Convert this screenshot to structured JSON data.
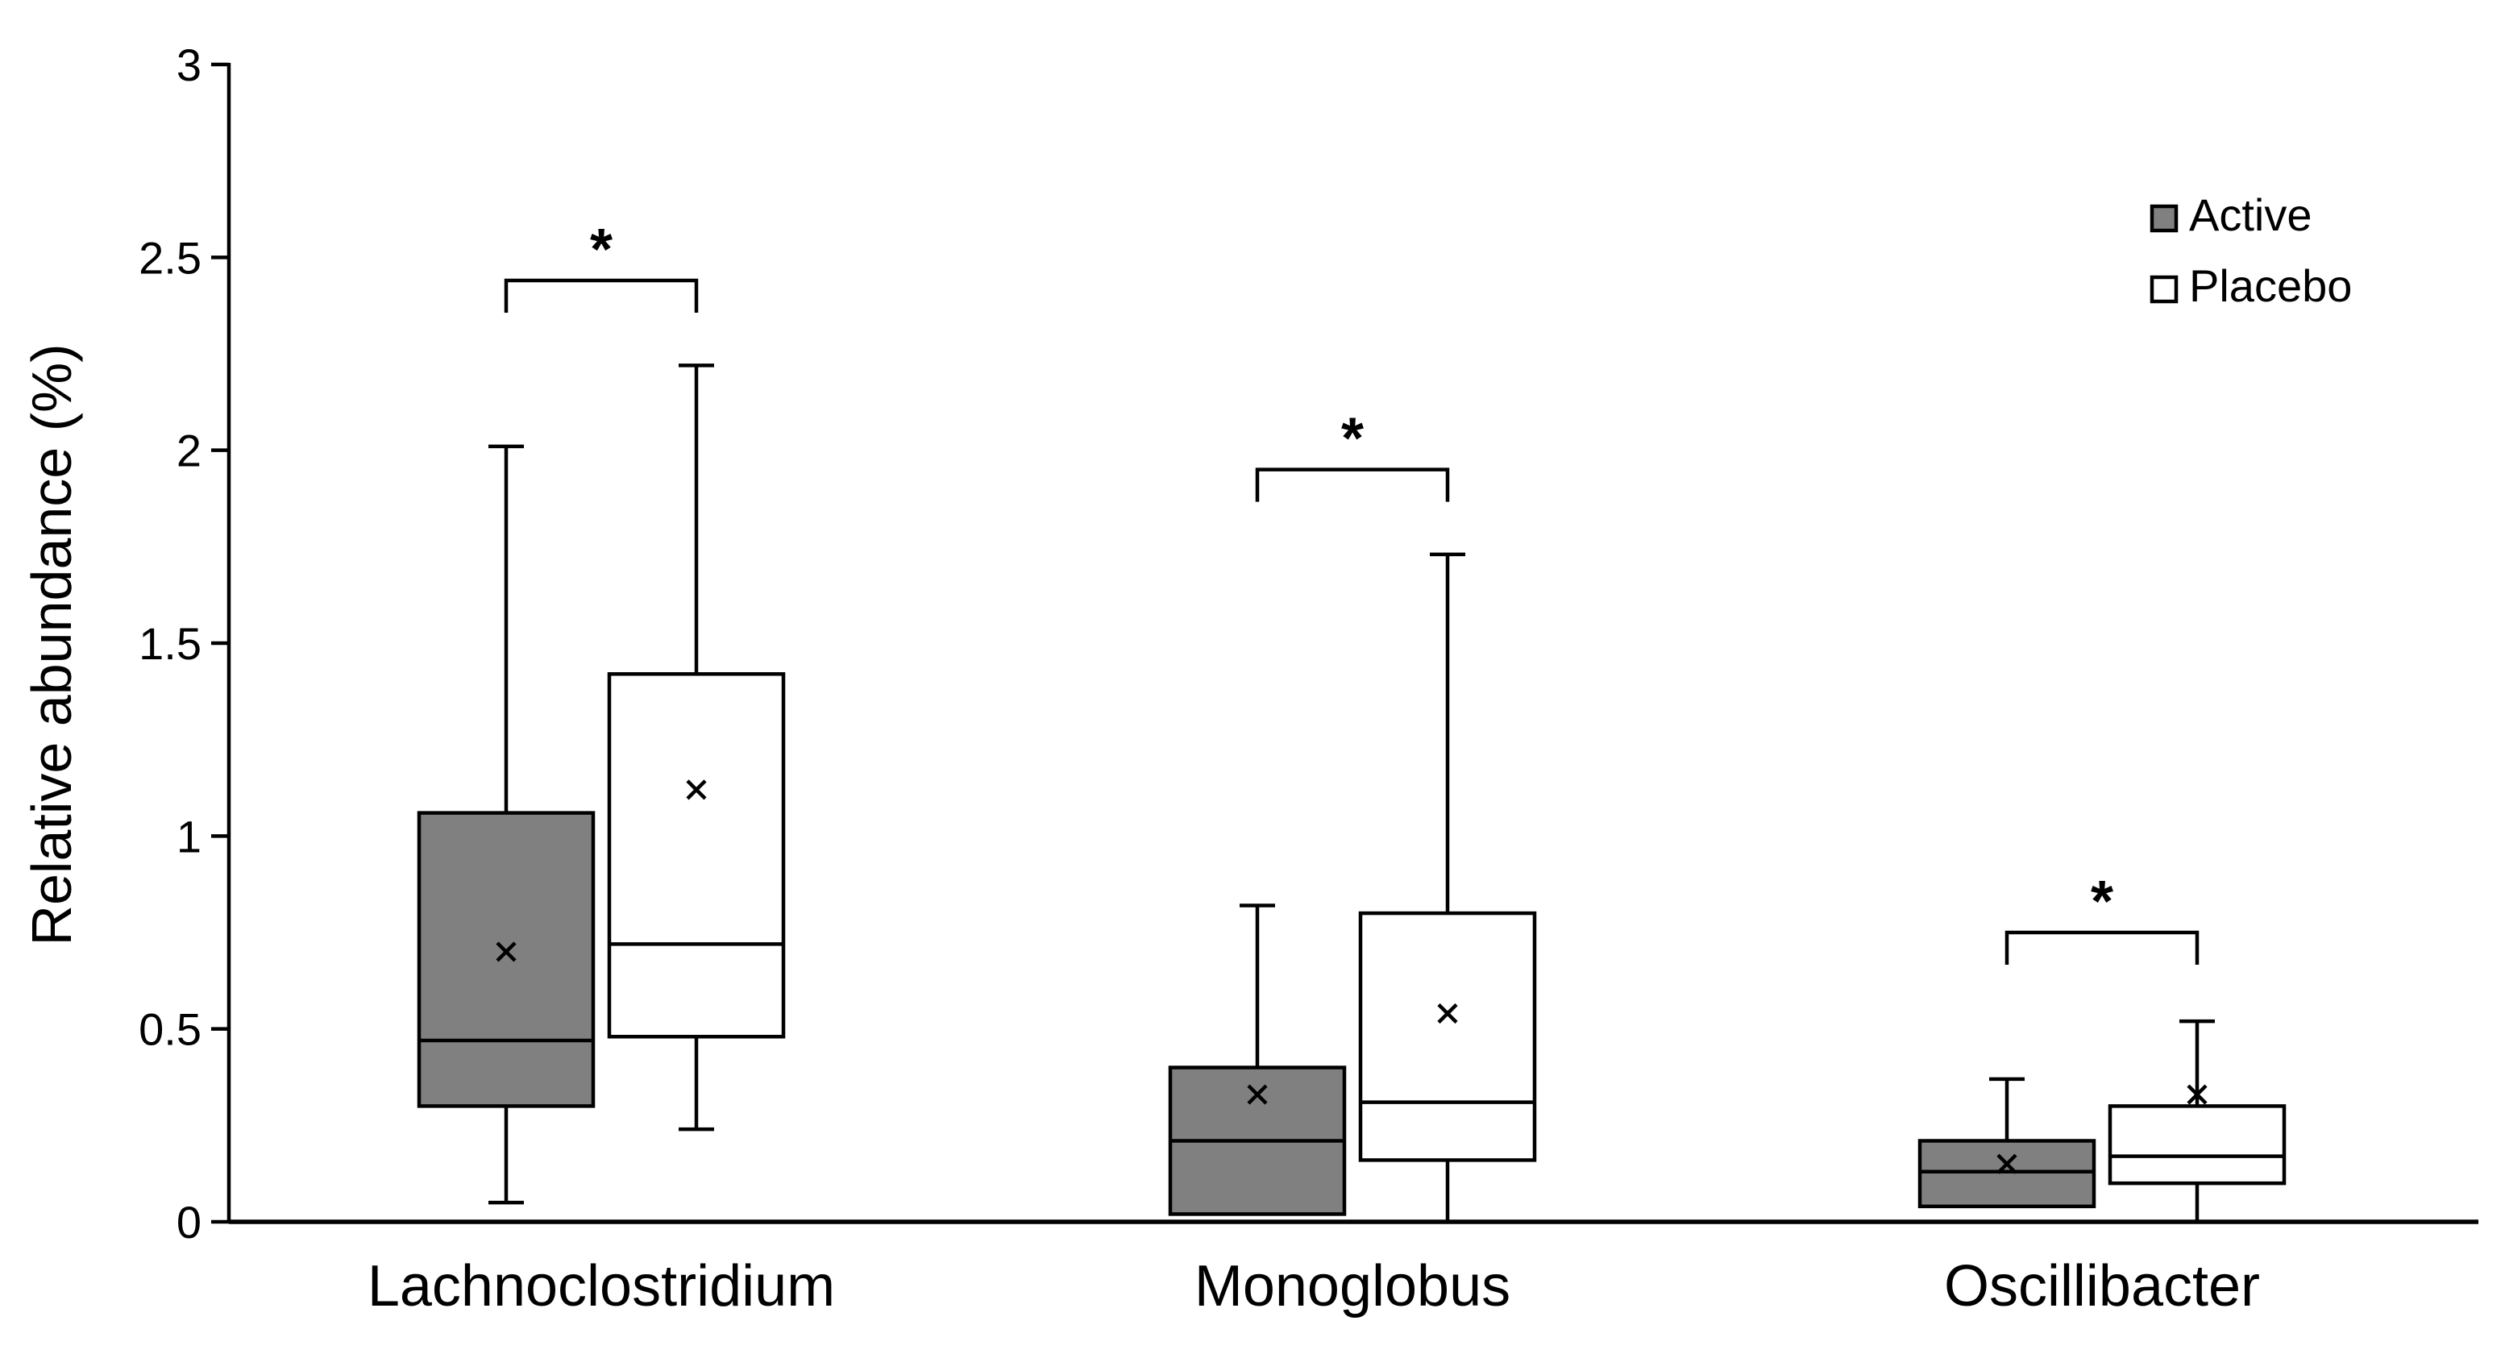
{
  "chart_data": {
    "type": "box",
    "title": "",
    "xlabel": "",
    "ylabel": "Relative abundance (%)",
    "ylim": [
      0,
      3
    ],
    "yticks": [
      0,
      0.5,
      1,
      1.5,
      2,
      2.5,
      3
    ],
    "ytick_labels": [
      "0",
      "0.5",
      "1",
      "1.5",
      "2",
      "2.5",
      "3"
    ],
    "categories": [
      "Lachnoclostridium",
      "Monoglobus",
      "Oscillibacter"
    ],
    "legend_position": "top-right",
    "series": [
      {
        "name": "Active",
        "color": "#808080",
        "boxes": [
          {
            "min": 0.05,
            "q1": 0.3,
            "median": 0.47,
            "q3": 1.06,
            "max": 2.01,
            "mean": 0.7
          },
          {
            "min": 0.02,
            "q1": 0.02,
            "median": 0.21,
            "q3": 0.4,
            "max": 0.82,
            "mean": 0.33
          },
          {
            "min": 0.04,
            "q1": 0.04,
            "median": 0.13,
            "q3": 0.21,
            "max": 0.37,
            "mean": 0.15
          }
        ]
      },
      {
        "name": "Placebo",
        "color": "#ffffff",
        "boxes": [
          {
            "min": 0.24,
            "q1": 0.48,
            "median": 0.72,
            "q3": 1.42,
            "max": 2.22,
            "mean": 1.12
          },
          {
            "min": 0.0,
            "q1": 0.16,
            "median": 0.31,
            "q3": 0.8,
            "max": 1.73,
            "mean": 0.54
          },
          {
            "min": 0.0,
            "q1": 0.1,
            "median": 0.17,
            "q3": 0.3,
            "max": 0.52,
            "mean": 0.33
          }
        ]
      }
    ],
    "significance": [
      {
        "category": "Lachnoclostridium",
        "label": "*",
        "bracket_y": 2.44
      },
      {
        "category": "Monoglobus",
        "label": "*",
        "bracket_y": 1.95
      },
      {
        "category": "Oscillibacter",
        "label": "*",
        "bracket_y": 0.75
      }
    ]
  }
}
